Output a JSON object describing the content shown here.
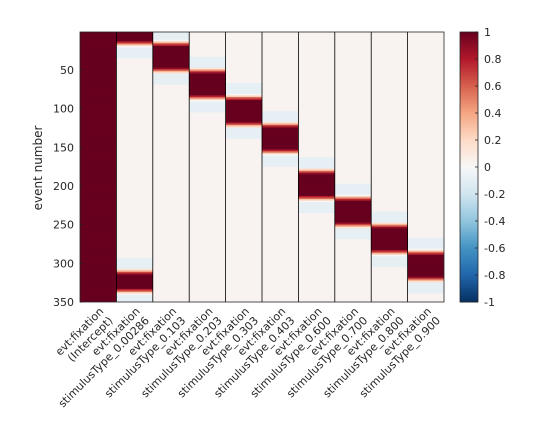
{
  "chart_data": {
    "type": "heatmap",
    "title": "",
    "ylabel": "event number",
    "xlabel": "",
    "ylim": [
      1,
      350
    ],
    "yticks": [
      50,
      100,
      150,
      200,
      250,
      300,
      350
    ],
    "columns": [
      "evt:fixation (Intercept)",
      "evt:fixation stimulusType_0.00286",
      "evt:fixation stimulusType_0.103",
      "evt:fixation stimulusType_0.203",
      "evt:fixation stimulusType_0.303",
      "evt:fixation stimulusType_0.403",
      "evt:fixation stimulusType_0.600",
      "evt:fixation stimulusType_0.700",
      "evt:fixation stimulusType_0.800",
      "evt:fixation stimulusType_0.900"
    ],
    "active_event_ranges": [
      {
        "column": "evt:fixation (Intercept)",
        "from": 1,
        "to": 350
      },
      {
        "column": "evt:fixation stimulusType_0.00286",
        "from": 1,
        "to": 15
      },
      {
        "column": "evt:fixation stimulusType_0.00286",
        "from": 310,
        "to": 335
      },
      {
        "column": "evt:fixation stimulusType_0.103",
        "from": 15,
        "to": 50
      },
      {
        "column": "evt:fixation stimulusType_0.203",
        "from": 50,
        "to": 85
      },
      {
        "column": "evt:fixation stimulusType_0.303",
        "from": 85,
        "to": 120
      },
      {
        "column": "evt:fixation stimulusType_0.403",
        "from": 120,
        "to": 155
      },
      {
        "column": "evt:fixation stimulusType_0.600",
        "from": 180,
        "to": 215
      },
      {
        "column": "evt:fixation stimulusType_0.700",
        "from": 215,
        "to": 250
      },
      {
        "column": "evt:fixation stimulusType_0.800",
        "from": 250,
        "to": 285
      },
      {
        "column": "evt:fixation stimulusType_0.900",
        "from": 285,
        "to": 320
      }
    ],
    "colorbar": {
      "range": [
        -1,
        1
      ],
      "ticks": [
        "1",
        "0.8",
        "0.6",
        "0.4",
        "0.2",
        "0",
        "-0.2",
        "-0.4",
        "-0.6",
        "-0.8",
        "-1"
      ],
      "colormap": "blue-white-red",
      "low_color": "#053061",
      "mid_color": "#f7f7f7",
      "high_color": "#67001f"
    },
    "grid": false,
    "legend": "colorbar-right"
  }
}
